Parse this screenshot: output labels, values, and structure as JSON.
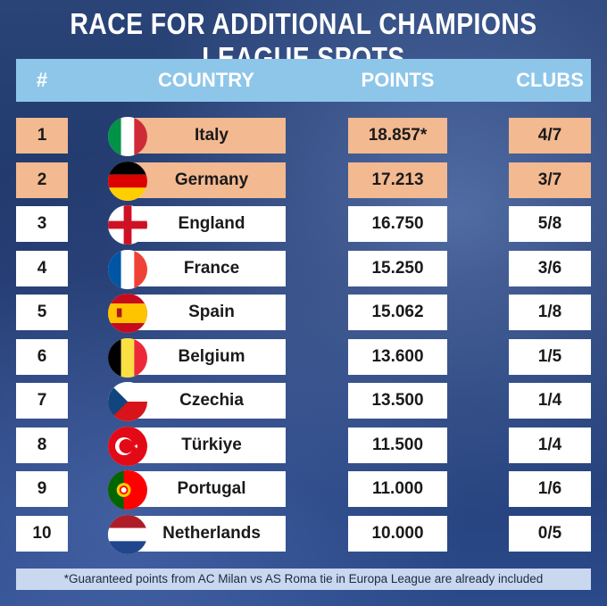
{
  "title": "RACE FOR ADDITIONAL CHAMPIONS LEAGUE SPOTS",
  "header": {
    "rank": "#",
    "country": "COUNTRY",
    "points": "POINTS",
    "clubs": "CLUBS"
  },
  "colors": {
    "header": "#8ec6ea",
    "highlight": "#f3b990",
    "row": "#ffffff"
  },
  "rows": [
    {
      "rank": "1",
      "country": "Italy",
      "points": "18.857*",
      "clubs": "4/7",
      "highlighted": true,
      "flag_icon": "italy-flag-icon"
    },
    {
      "rank": "2",
      "country": "Germany",
      "points": "17.213",
      "clubs": "3/7",
      "highlighted": true,
      "flag_icon": "germany-flag-icon"
    },
    {
      "rank": "3",
      "country": "England",
      "points": "16.750",
      "clubs": "5/8",
      "highlighted": false,
      "flag_icon": "england-flag-icon"
    },
    {
      "rank": "4",
      "country": "France",
      "points": "15.250",
      "clubs": "3/6",
      "highlighted": false,
      "flag_icon": "france-flag-icon"
    },
    {
      "rank": "5",
      "country": "Spain",
      "points": "15.062",
      "clubs": "1/8",
      "highlighted": false,
      "flag_icon": "spain-flag-icon"
    },
    {
      "rank": "6",
      "country": "Belgium",
      "points": "13.600",
      "clubs": "1/5",
      "highlighted": false,
      "flag_icon": "belgium-flag-icon"
    },
    {
      "rank": "7",
      "country": "Czechia",
      "points": "13.500",
      "clubs": "1/4",
      "highlighted": false,
      "flag_icon": "czechia-flag-icon"
    },
    {
      "rank": "8",
      "country": "Türkiye",
      "points": "11.500",
      "clubs": "1/4",
      "highlighted": false,
      "flag_icon": "turkiye-flag-icon"
    },
    {
      "rank": "9",
      "country": "Portugal",
      "points": "11.000",
      "clubs": "1/6",
      "highlighted": false,
      "flag_icon": "portugal-flag-icon"
    },
    {
      "rank": "10",
      "country": "Netherlands",
      "points": "10.000",
      "clubs": "0/5",
      "highlighted": false,
      "flag_icon": "netherlands-flag-icon"
    }
  ],
  "footnote": "*Guaranteed points from AC Milan vs AS Roma tie in Europa League are already included"
}
